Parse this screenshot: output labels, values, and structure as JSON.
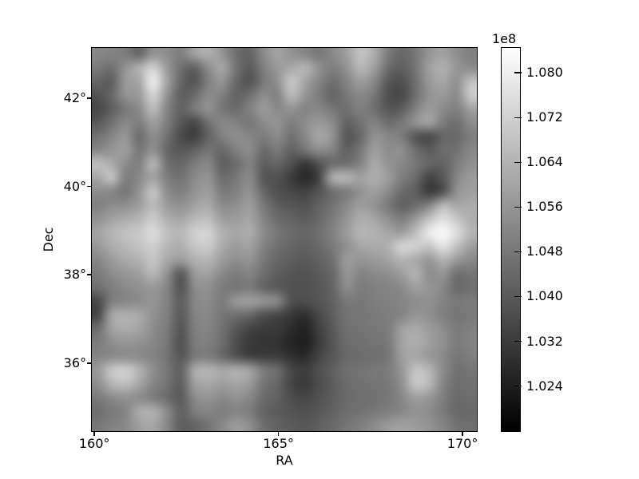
{
  "figure": {
    "background": "#ffffff",
    "text_color": "#000000",
    "frame_color": "#000000"
  },
  "chart_data": {
    "type": "heatmap",
    "title": "",
    "xlabel": "RA",
    "ylabel": "Dec",
    "x_ticks": [
      {
        "value": 160,
        "label": "160°"
      },
      {
        "value": 165,
        "label": "165°"
      },
      {
        "value": 170,
        "label": "170°"
      }
    ],
    "y_ticks": [
      {
        "value": 42,
        "label": "42°"
      },
      {
        "value": 40,
        "label": "40°"
      },
      {
        "value": 38,
        "label": "38°"
      },
      {
        "value": 36,
        "label": "36°"
      }
    ],
    "x_range_deg": [
      159.91,
      170.41
    ],
    "y_range_deg": [
      34.44,
      43.16
    ],
    "colormap": "gray",
    "grid_on": false,
    "legend": "none",
    "colorbar": {
      "offset_label": "1e8",
      "vmin_1e8": 1.0158,
      "vmax_1e8": 1.0846,
      "ticks": [
        {
          "value": 1.08,
          "label": "1.080"
        },
        {
          "value": 1.072,
          "label": "1.072"
        },
        {
          "value": 1.064,
          "label": "1.064"
        },
        {
          "value": 1.056,
          "label": "1.056"
        },
        {
          "value": 1.048,
          "label": "1.048"
        },
        {
          "value": 1.04,
          "label": "1.040"
        },
        {
          "value": 1.032,
          "label": "1.032"
        },
        {
          "value": 1.024,
          "label": "1.024"
        }
      ]
    },
    "grid_rows": 28,
    "grid_cols": 28,
    "pixel_rows_hex": [
      "88847c66928e7ea2b0966e628ca49286788a9ec4ae7c687896a28e80",
      "7a7094b2d29a70608ca8745a809aa8b6927e92b8a06e5e76a0b0968a",
      "665c9ca6f0a46654809668527a90c8a4866e849e8a5850709aa890c2",
      "5268949ad6925e6a8c8062708e82bc967c64788a7850486e949a8acc",
      "485e788cbe84627c94766c829c8894848876708070565c829c8a80a2",
      "58728a7ea07e5846708a82768c947e8e9a8c6272846e7894a47c6e8c",
      "7286986c8e724a40628090867c8c7088a894566892887e544a666a7e",
      "8894a076926658627668808e6a7a62768e826076a08c906e5c6e7288",
      "c0ac8c80b872667c885e6c825e665036506c7082aa94887866627c90",
      "a6c47e8aa27e728a946c788c56523c2842b0b6a2ae9e7e6c4258889c",
      "8e867694c68c7e929e7a809266504842546e7c92a08c6c5e3a5092a0",
      "808c8e9ebc9a90a0aa8a8e9e785e56526274889e927a606c84b8a6ac",
      "92a2acb6ccaea6b8be9e9ca6846c645e687c94aea6907e9ac4e0c6ae",
      "a4b6c2cadcc0b8d0d4b2a6ae8c786c6670829cb6b2a69cbeecfadeb6",
      "98acb8c2d0b6aec6ccaa9ca2827066606a7a90a6aab0d6d2c6e4c09e",
      "869aaab2c6a89cb0b69c8e9478665e5a62709c949aa2b4a896b29a88",
      "7a8c96a0b892569aa0887c846e5e56525c6896848a8e9cb48c966e76",
      "707e8a909886528c907c747a645a525058648e7c80848aa096886a70",
      "487e868c94825c888c7a9aa0968a504e566278787e82868c9084787c",
      "46a8b0aa90805884887670665046382e485e74767a7e84968e80767a",
      "6ea2aca48c7c5480847256443c3a2c22405a7074787ca0aa9c8e7a80",
      "7c8e96928878507c806e4e3a3432261e3a566c707478a4aea0907c84",
      "848a8c8a847456787c6a52403e3c302a4458686c70749ea6988a767e",
      "9ac8d0b48e7860acb4a8b0a47c6e483e50607074787c96c4b68c7276",
      "8eb6c0a686745ca0a89ea69a7466443a4c5c6c70747890c8ba846e72",
      "7a8a928a7c6c588c948a92886c604e46525e6a6e727688a0967e6a6e",
      "6e7a84acb08c607e867e847c645c545058626e72787e86928c7a686a",
      "78828aa0a6885e6474889c906e625c58606a767e8c9aa29c9484726e"
    ]
  }
}
